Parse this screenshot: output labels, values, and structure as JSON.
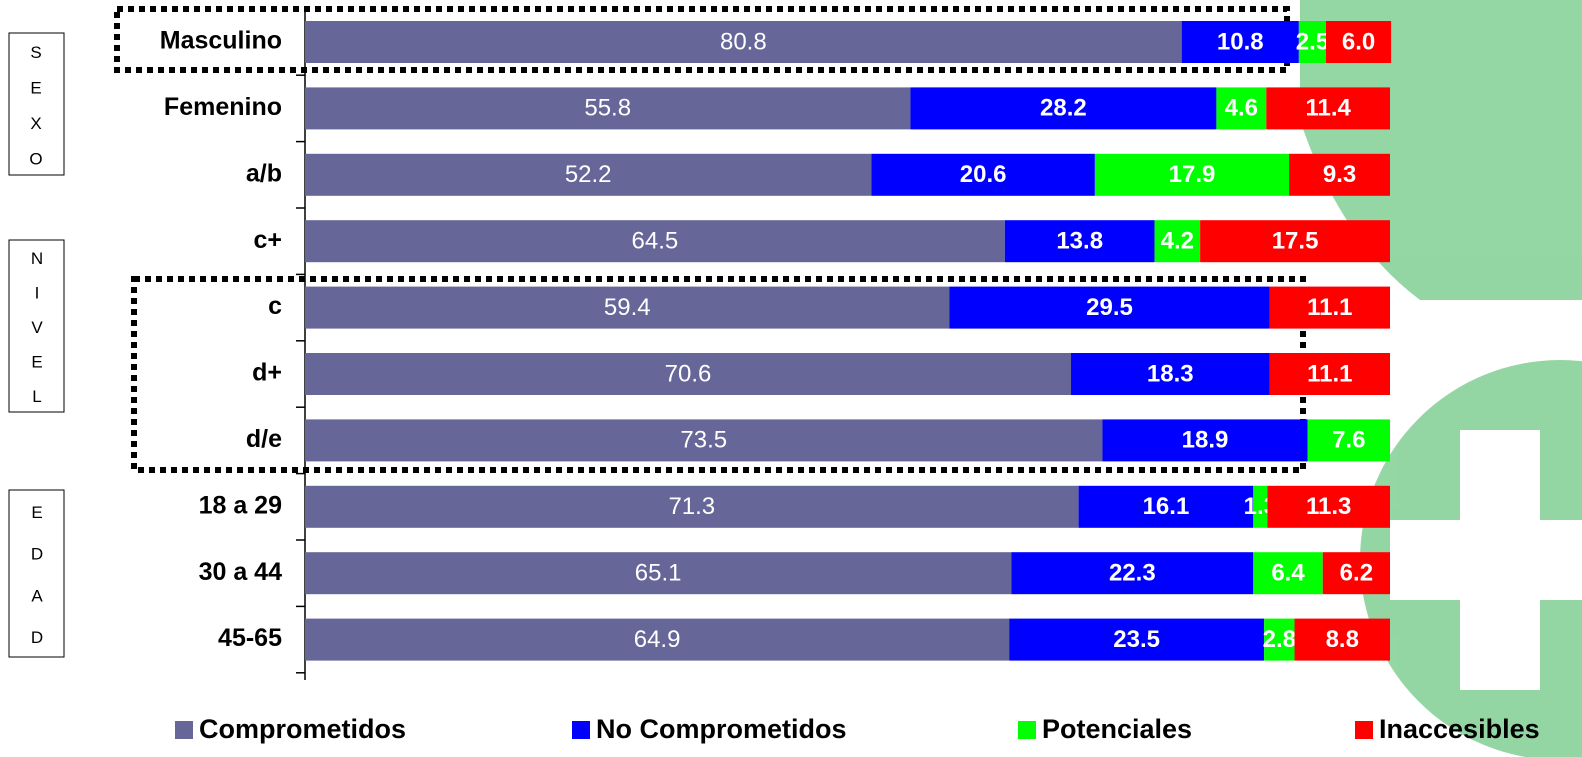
{
  "chart_data": {
    "type": "stacked-bar-horizontal",
    "categories": [
      "Masculino",
      "Femenino",
      "a/b",
      "c+",
      "c",
      "d+",
      "d/e",
      "18 a 29",
      "30 a 44",
      "45-65"
    ],
    "groups": [
      "SEXO",
      "NIVEL",
      "EDAD"
    ],
    "xlim": [
      0,
      100
    ],
    "series": [
      {
        "name": "Comprometidos",
        "color": "#666699",
        "values": [
          80.8,
          55.8,
          52.2,
          64.5,
          59.4,
          70.6,
          73.5,
          71.3,
          65.1,
          64.9
        ]
      },
      {
        "name": "No Comprometidos",
        "color": "#0000ff",
        "values": [
          10.8,
          28.2,
          20.6,
          13.8,
          29.5,
          18.3,
          18.9,
          16.1,
          22.3,
          23.5
        ]
      },
      {
        "name": "Potenciales",
        "color": "#00ff00",
        "values": [
          2.5,
          4.6,
          17.9,
          4.2,
          null,
          null,
          7.6,
          1.3,
          6.4,
          2.8
        ]
      },
      {
        "name": "Inaccesibles",
        "color": "#ff0000",
        "values": [
          6.0,
          11.4,
          9.3,
          17.5,
          11.1,
          11.1,
          null,
          11.3,
          6.2,
          8.8
        ],
        "value_labels": [
          "6.0",
          "11.4",
          "9.3",
          "17.5",
          "11.1",
          "11.1",
          null,
          "11.3",
          "6.2",
          "8.8"
        ]
      }
    ]
  }
}
